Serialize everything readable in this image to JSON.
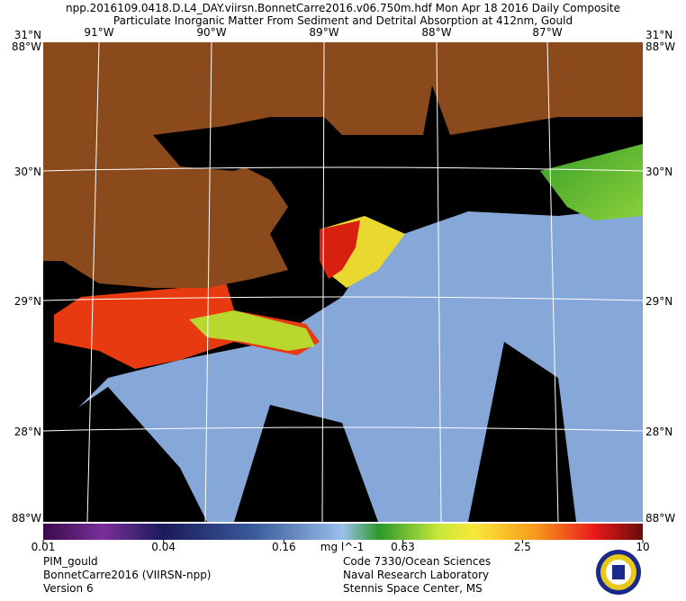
{
  "header": {
    "line1": "npp.2016109.0418.D.L4_DAY.viirsn.BonnetCarre2016.v06.750m.hdf    Mon Apr 18 2016 Daily Composite",
    "line2": "Particulate Inorganic Matter From Sediment and Detrital Absorption at 412nm, Gould"
  },
  "map": {
    "lon_labels": [
      "91°W",
      "90°W",
      "89°W",
      "88°W",
      "87°W"
    ],
    "lat_labels": [
      "30°N",
      "29°N",
      "28°N"
    ],
    "corner_lat": "31°N",
    "corner_lon": "88°W"
  },
  "colorbar": {
    "scale": "log",
    "min": 0.01,
    "max": 10,
    "ticks": [
      0.01,
      0.04,
      0.16,
      0.63,
      2.5,
      10
    ],
    "unit": "mg l^-1"
  },
  "footer": {
    "left": [
      "PIM_gould",
      "BonnetCarre2016 (VIIRSN-npp)",
      "Version 6"
    ],
    "right": [
      "Code 7330/Ocean Sciences",
      "Naval Research Laboratory",
      "Stennis Space Center, MS"
    ]
  }
}
